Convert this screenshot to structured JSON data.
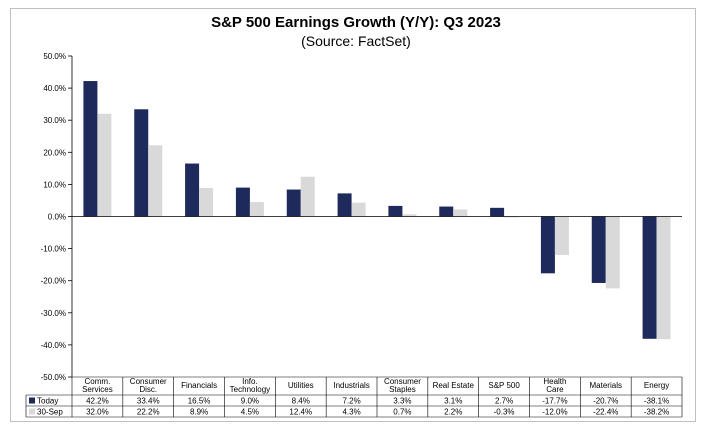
{
  "chart_data": {
    "type": "bar",
    "title": "S&P 500 Earnings Growth (Y/Y): Q3 2023",
    "subtitle": "(Source: FactSet)",
    "categories": [
      "Comm. Services",
      "Consumer Disc.",
      "Financials",
      "Info. Technology",
      "Utilities",
      "Industrials",
      "Consumer Staples",
      "Real Estate",
      "S&P 500",
      "Health Care",
      "Materials",
      "Energy"
    ],
    "category_lines": [
      [
        "Comm.",
        "Services"
      ],
      [
        "Consumer",
        "Disc."
      ],
      [
        "Financials"
      ],
      [
        "Info.",
        "Technology"
      ],
      [
        "Utilities"
      ],
      [
        "Industrials"
      ],
      [
        "Consumer",
        "Staples"
      ],
      [
        "Real Estate"
      ],
      [
        "S&P 500"
      ],
      [
        "Health",
        "Care"
      ],
      [
        "Materials"
      ],
      [
        "Energy"
      ]
    ],
    "series": [
      {
        "name": "Today",
        "color": "#1f2a5c",
        "values": [
          42.2,
          33.4,
          16.5,
          9.0,
          8.4,
          7.2,
          3.3,
          3.1,
          2.7,
          -17.7,
          -20.7,
          -38.1
        ],
        "labels": [
          "42.2%",
          "33.4%",
          "16.5%",
          "9.0%",
          "8.4%",
          "7.2%",
          "3.3%",
          "3.1%",
          "2.7%",
          "-17.7%",
          "-20.7%",
          "-38.1%"
        ]
      },
      {
        "name": "30-Sep",
        "color": "#d9d9d9",
        "values": [
          32.0,
          22.2,
          8.9,
          4.5,
          12.4,
          4.3,
          0.7,
          2.2,
          -0.3,
          -12.0,
          -22.4,
          -38.2
        ],
        "labels": [
          "32.0%",
          "22.2%",
          "8.9%",
          "4.5%",
          "12.4%",
          "4.3%",
          "0.7%",
          "2.2%",
          "-0.3%",
          "-12.0%",
          "-22.4%",
          "-38.2%"
        ]
      }
    ],
    "ylim": [
      -50,
      50
    ],
    "yticks": [
      50,
      40,
      30,
      20,
      10,
      0,
      -10,
      -20,
      -30,
      -40,
      -50
    ],
    "ytick_labels": [
      "50.0%",
      "40.0%",
      "30.0%",
      "20.0%",
      "10.0%",
      "0.0%",
      "-10.0%",
      "-20.0%",
      "-30.0%",
      "-40.0%",
      "-50.0%"
    ],
    "grid": false,
    "legend": "data-table"
  }
}
